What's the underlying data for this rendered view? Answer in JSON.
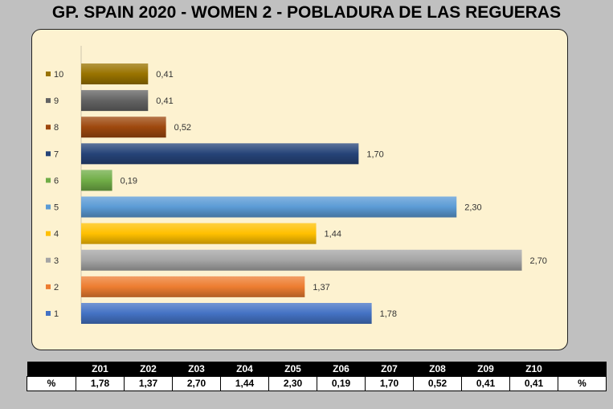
{
  "title": "GP. SPAIN 2020 - WOMEN 2 - POBLADURA DE LAS REGUERAS",
  "chart_data": {
    "type": "bar",
    "orientation": "horizontal",
    "categories": [
      "1",
      "2",
      "3",
      "4",
      "5",
      "6",
      "7",
      "8",
      "9",
      "10"
    ],
    "values": [
      1.78,
      1.37,
      2.7,
      1.44,
      2.3,
      0.19,
      1.7,
      0.52,
      0.41,
      0.41
    ],
    "data_labels": [
      "1,78",
      "1,37",
      "2,70",
      "1,44",
      "2,30",
      "0,19",
      "1,70",
      "0,52",
      "0,41",
      "0,41"
    ],
    "colors": [
      "#4472c4",
      "#ed7d31",
      "#a5a5a5",
      "#ffc000",
      "#5b9bd5",
      "#70ad47",
      "#264478",
      "#9e480e",
      "#636363",
      "#997300"
    ],
    "legend": "left",
    "grid": false,
    "xlim": [
      0,
      2.85
    ]
  },
  "table": {
    "headers": [
      "",
      "Z01",
      "Z02",
      "Z03",
      "Z04",
      "Z05",
      "Z06",
      "Z07",
      "Z08",
      "Z09",
      "Z10",
      ""
    ],
    "row": [
      "%",
      "1,78",
      "1,37",
      "2,70",
      "1,44",
      "2,30",
      "0,19",
      "1,70",
      "0,52",
      "0,41",
      "0,41",
      "%"
    ]
  }
}
